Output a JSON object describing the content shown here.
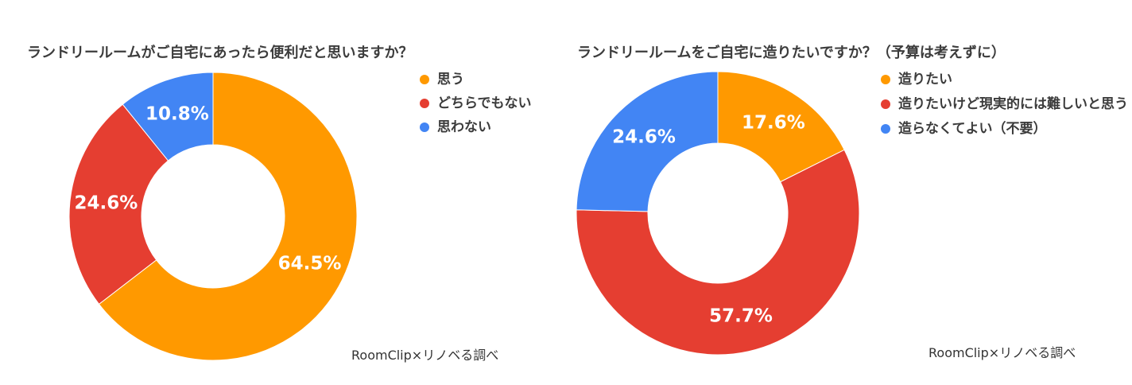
{
  "chart_data": [
    {
      "type": "pie",
      "title": "ランドリールームがご自宅にあったら便利だと思いますか？",
      "categories": [
        "思う",
        "どちらでもない",
        "思わない"
      ],
      "values": [
        64.5,
        24.6,
        10.8
      ],
      "value_labels": [
        "64.5%",
        "24.6%",
        "10.8%"
      ],
      "colors": [
        "#FF9900",
        "#E53E31",
        "#4285F4"
      ],
      "donut": true,
      "legend_position": "right",
      "source": "RoomClip×リノベる調べ"
    },
    {
      "type": "pie",
      "title": "ランドリールームをご自宅に造りたいですか？（予算は考えずに）",
      "categories": [
        "造りたい",
        "造りたいけど現実的には難しいと思う",
        "造らなくてよい（不要）"
      ],
      "values": [
        17.6,
        57.7,
        24.6
      ],
      "value_labels": [
        "17.6%",
        "57.7%",
        "24.6%"
      ],
      "colors": [
        "#FF9900",
        "#E53E31",
        "#4285F4"
      ],
      "donut": true,
      "legend_position": "right",
      "source": "RoomClip×リノベる調べ"
    }
  ]
}
